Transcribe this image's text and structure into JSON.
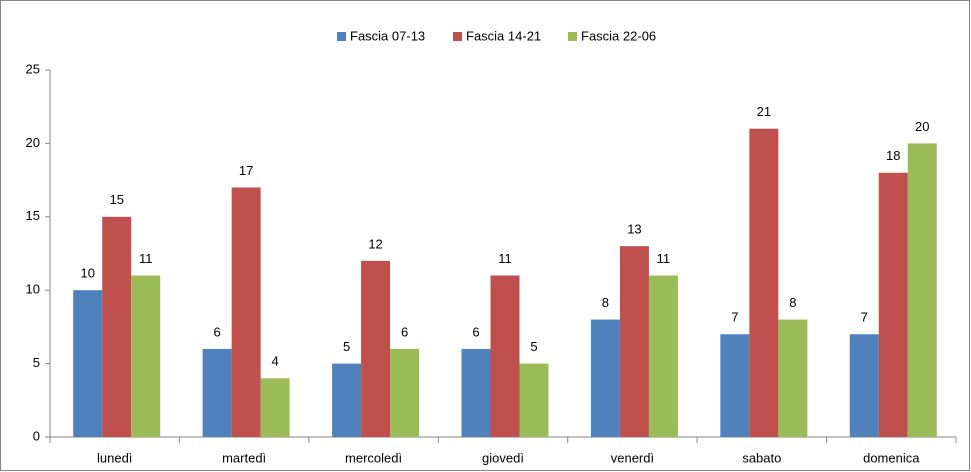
{
  "chart_data": {
    "type": "bar",
    "categories": [
      "lunedì",
      "martedì",
      "mercoledì",
      "giovedì",
      "venerdì",
      "sabato",
      "domenica"
    ],
    "series": [
      {
        "name": "Fascia 07-13",
        "color": "#4f81bd",
        "values": [
          10,
          6,
          5,
          6,
          8,
          7,
          7
        ]
      },
      {
        "name": "Fascia 14-21",
        "color": "#c0504d",
        "values": [
          15,
          17,
          12,
          11,
          13,
          21,
          18
        ]
      },
      {
        "name": "Fascia 22-06",
        "color": "#9bbb59",
        "values": [
          11,
          4,
          6,
          5,
          11,
          8,
          20
        ]
      }
    ],
    "ylim": [
      0,
      25
    ],
    "yticks": [
      0,
      5,
      10,
      15,
      20,
      25
    ],
    "grid": false,
    "legend": "top",
    "data_labels": true
  }
}
